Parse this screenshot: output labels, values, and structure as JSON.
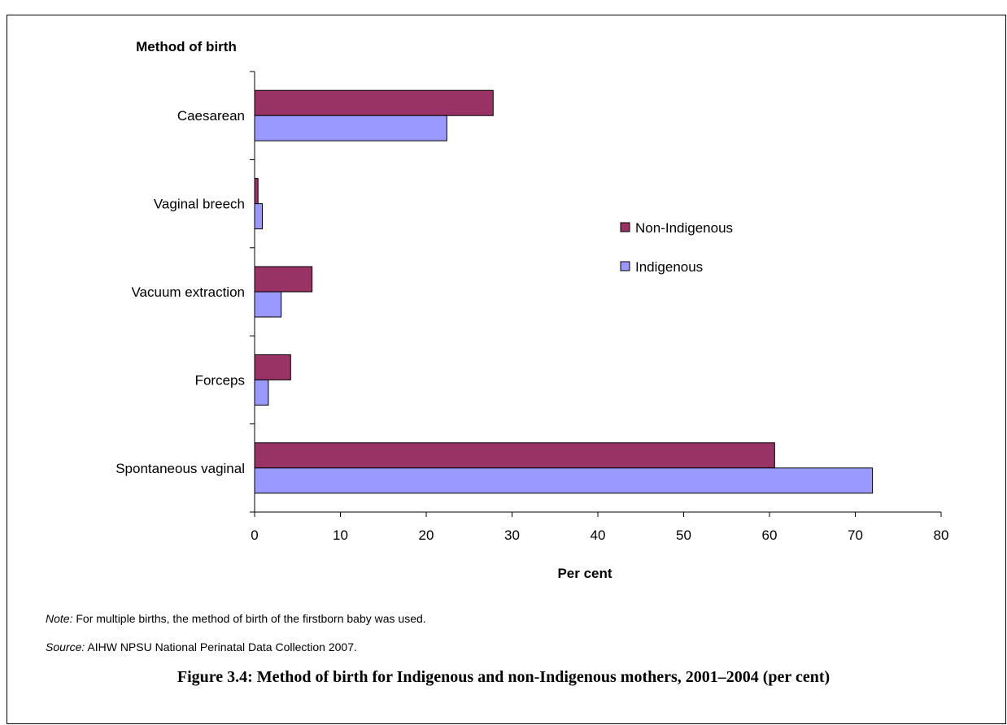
{
  "chart_data": {
    "type": "bar",
    "orientation": "horizontal",
    "ylabel": "Method of birth",
    "xlabel": "Per cent",
    "categories": [
      "Caesarean",
      "Vaginal breech",
      "Vacuum extraction",
      "Forceps",
      "Spontaneous vaginal"
    ],
    "series": [
      {
        "name": "Non-Indigenous",
        "color": "#993366",
        "values": [
          27.8,
          0.4,
          6.7,
          4.2,
          60.6
        ]
      },
      {
        "name": "Indigenous",
        "color": "#9999ff",
        "values": [
          22.4,
          0.9,
          3.1,
          1.6,
          72.0
        ]
      }
    ],
    "xlim": [
      0,
      80
    ],
    "xticks": [
      "0",
      "10",
      "20",
      "30",
      "40",
      "50",
      "60",
      "70",
      "80"
    ],
    "grid": false,
    "legend_position": "right"
  },
  "notes": {
    "note_label": "Note:",
    "note_text": "For multiple births, the method of birth of the firstborn baby was used.",
    "source_label": "Source:",
    "source_text": "AIHW NPSU National Perinatal Data Collection 2007."
  },
  "caption": "Figure 3.4: Method of birth for Indigenous and non-Indigenous mothers, 2001–2004 (per cent)"
}
